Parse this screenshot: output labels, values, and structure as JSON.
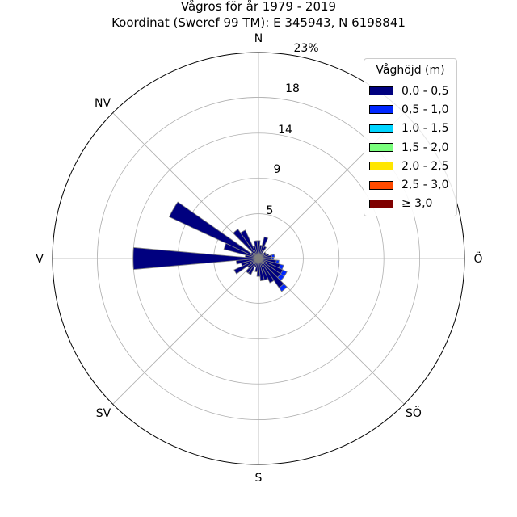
{
  "chart_data": {
    "type": "polar-bar",
    "title": "Vågros för år 1979 - 2019",
    "subtitle": "Koordinat (Sweref 99 TM): E 345943, N 6198841",
    "direction_labels": [
      "N",
      "NV",
      "V",
      "SV",
      "S",
      "SÖ",
      "Ö"
    ],
    "radial_ticks": [
      5,
      9,
      14,
      18
    ],
    "radial_max_label": "23%",
    "radial_max": 23,
    "legend": {
      "title": "Våghöjd (m)",
      "entries": [
        {
          "label": "0,0 - 0,5",
          "color": "#00007f"
        },
        {
          "label": "0,5 - 1,0",
          "color": "#0027ff"
        },
        {
          "label": "1,0 - 1,5",
          "color": "#00d5ff"
        },
        {
          "label": "1,5 - 2,0",
          "color": "#7aff7d"
        },
        {
          "label": "2,0 - 2,5",
          "color": "#ffe600"
        },
        {
          "label": "2,5 - 3,0",
          "color": "#ff4a00"
        },
        {
          "label": "≥ 3,0",
          "color": "#7f0000"
        }
      ]
    },
    "sectors": [
      {
        "angle": 0,
        "values": [
          2.0,
          0
        ]
      },
      {
        "angle": 10,
        "values": [
          1.5,
          0
        ]
      },
      {
        "angle": 20,
        "values": [
          2.5,
          0
        ]
      },
      {
        "angle": 30,
        "values": [
          1.5,
          0
        ]
      },
      {
        "angle": 40,
        "values": [
          0.8,
          0
        ]
      },
      {
        "angle": 50,
        "values": [
          1.0,
          0
        ]
      },
      {
        "angle": 60,
        "values": [
          1.0,
          0
        ]
      },
      {
        "angle": 70,
        "values": [
          1.2,
          0
        ]
      },
      {
        "angle": 80,
        "values": [
          1.5,
          0.3
        ]
      },
      {
        "angle": 90,
        "values": [
          1.5,
          0.2
        ]
      },
      {
        "angle": 100,
        "values": [
          2.0,
          0.3
        ]
      },
      {
        "angle": 110,
        "values": [
          2.5,
          0.4
        ]
      },
      {
        "angle": 120,
        "values": [
          3.0,
          0.5
        ]
      },
      {
        "angle": 130,
        "values": [
          3.0,
          0.5
        ]
      },
      {
        "angle": 140,
        "values": [
          4.0,
          0.5
        ]
      },
      {
        "angle": 150,
        "values": [
          3.0,
          0
        ]
      },
      {
        "angle": 160,
        "values": [
          2.5,
          0
        ]
      },
      {
        "angle": 170,
        "values": [
          2.5,
          0
        ]
      },
      {
        "angle": 180,
        "values": [
          2.0,
          0
        ]
      },
      {
        "angle": 190,
        "values": [
          1.5,
          0
        ]
      },
      {
        "angle": 200,
        "values": [
          1.0,
          0
        ]
      },
      {
        "angle": 210,
        "values": [
          2.0,
          0
        ]
      },
      {
        "angle": 220,
        "values": [
          2.0,
          0
        ]
      },
      {
        "angle": 230,
        "values": [
          1.5,
          0
        ]
      },
      {
        "angle": 240,
        "values": [
          3.0,
          0
        ]
      },
      {
        "angle": 250,
        "values": [
          2.0,
          0
        ]
      },
      {
        "angle": 260,
        "values": [
          2.5,
          0
        ]
      },
      {
        "angle": 270,
        "values": [
          14.0,
          0
        ]
      },
      {
        "angle": 280,
        "values": [
          1.5,
          0
        ]
      },
      {
        "angle": 290,
        "values": [
          4.0,
          0
        ]
      },
      {
        "angle": 300,
        "values": [
          11.0,
          0
        ]
      },
      {
        "angle": 310,
        "values": [
          1.0,
          0
        ]
      },
      {
        "angle": 320,
        "values": [
          4.0,
          0
        ]
      },
      {
        "angle": 330,
        "values": [
          3.5,
          0
        ]
      },
      {
        "angle": 340,
        "values": [
          1.5,
          0
        ]
      },
      {
        "angle": 350,
        "values": [
          2.0,
          0
        ]
      }
    ]
  }
}
